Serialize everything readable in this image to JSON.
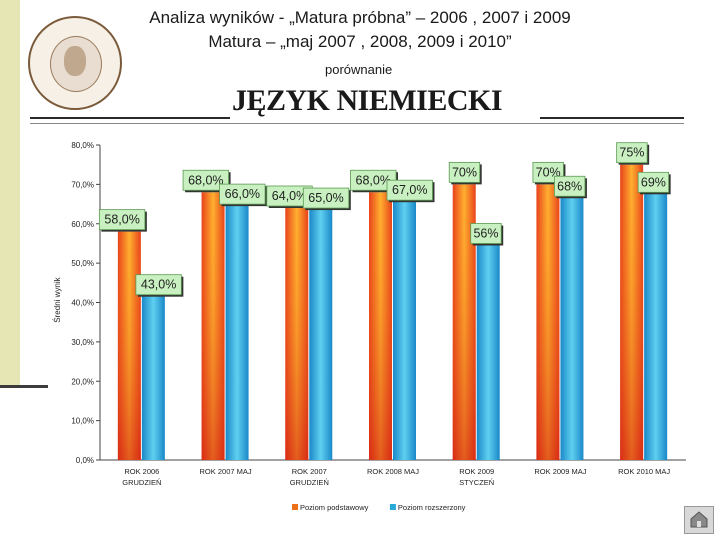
{
  "header": {
    "line1": "Analiza wyników - „Matura próbna” – 2006 , 2007 i 2009",
    "line2": "Matura – „maj 2007 , 2008, 2009 i 2010”",
    "subtitle": "porównanie",
    "subject": "JĘZYK NIEMIECKI"
  },
  "logo": {
    "icon": "school-seal-icon"
  },
  "nav": {
    "icon": "home-nav-icon"
  },
  "chart_data": {
    "type": "bar",
    "ylabel": "Średni wynik",
    "ylim": [
      0,
      80
    ],
    "yticks": [
      "0,0%",
      "10,0%",
      "20,0%",
      "30,0%",
      "40,0%",
      "50,0%",
      "60,0%",
      "70,0%",
      "80,0%"
    ],
    "grid": false,
    "legend_position": "bottom",
    "categories": [
      [
        "ROK 2006",
        "GRUDZIEŃ"
      ],
      [
        "ROK 2007 MAJ"
      ],
      [
        "ROK 2007",
        "GRUDZIEŃ"
      ],
      [
        "ROK 2008 MAJ"
      ],
      [
        "ROK 2009",
        "STYCZEŃ"
      ],
      [
        "ROK 2009 MAJ"
      ],
      [
        "ROK 2010 MAJ"
      ]
    ],
    "series": [
      {
        "name": "Poziom podstawowy",
        "color": "#f0701a",
        "values": [
          58,
          68,
          64,
          68,
          70,
          70,
          75
        ],
        "labels": [
          "58,0%",
          "68,0%",
          "64,0%",
          "68,0%",
          "70%",
          "70%",
          "75%"
        ]
      },
      {
        "name": "Poziom rozszerzony",
        "color": "#2aa8d8",
        "values": [
          43,
          66,
          65,
          67,
          56,
          68,
          69
        ],
        "labels": [
          "43,0%",
          "66,0%",
          "65,0%",
          "67,0%",
          "56%",
          "68%",
          "69%"
        ]
      }
    ]
  }
}
